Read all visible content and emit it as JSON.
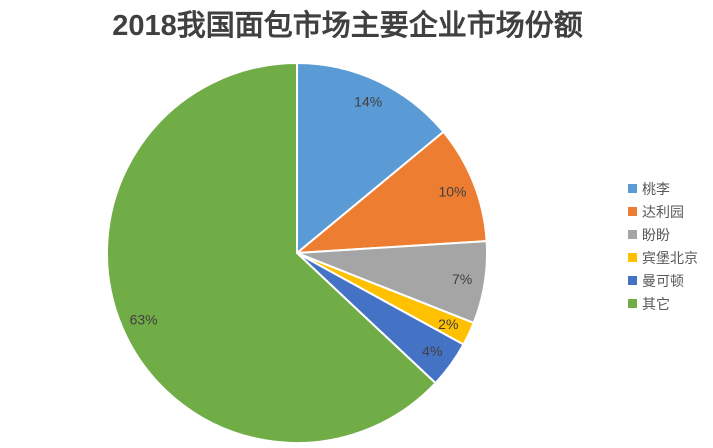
{
  "page": {
    "background_color": "#FFFFFF"
  },
  "chart_data": {
    "type": "pie",
    "title": "2018我国面包市场主要企业市场份额",
    "legend_position": "right",
    "start_angle_deg": 0,
    "direction": "clockwise",
    "slices": [
      {
        "label": "桃李",
        "value": 14,
        "data_label": "14%",
        "color": "#5B9BD5"
      },
      {
        "label": "达利园",
        "value": 10,
        "data_label": "10%",
        "color": "#ED7D31"
      },
      {
        "label": "盼盼",
        "value": 7,
        "data_label": "7%",
        "color": "#A5A5A5"
      },
      {
        "label": "宾堡北京",
        "value": 2,
        "data_label": "2%",
        "color": "#FFC000"
      },
      {
        "label": "曼可顿",
        "value": 4,
        "data_label": "4%",
        "color": "#4472C4"
      },
      {
        "label": "其它",
        "value": 63,
        "data_label": "63%",
        "color": "#70AD47"
      }
    ],
    "styles": {
      "title_color": "#404040",
      "data_label_color": "#404040",
      "legend_text_color": "#595959",
      "slice_border_color": "#FFFFFF"
    }
  }
}
